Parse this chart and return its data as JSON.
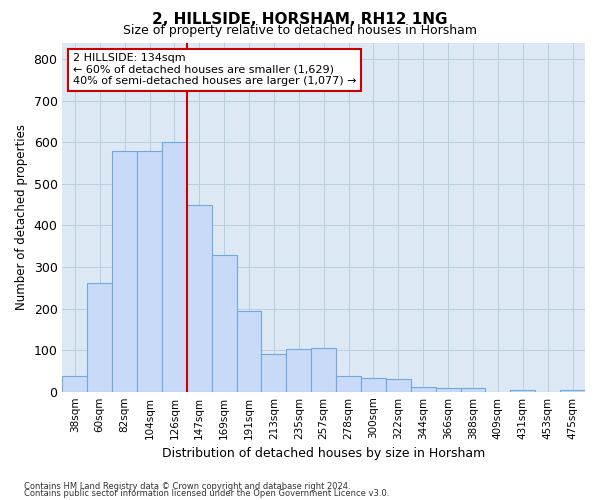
{
  "title": "2, HILLSIDE, HORSHAM, RH12 1NG",
  "subtitle": "Size of property relative to detached houses in Horsham",
  "xlabel": "Distribution of detached houses by size in Horsham",
  "ylabel": "Number of detached properties",
  "categories": [
    "38sqm",
    "60sqm",
    "82sqm",
    "104sqm",
    "126sqm",
    "147sqm",
    "169sqm",
    "191sqm",
    "213sqm",
    "235sqm",
    "257sqm",
    "278sqm",
    "300sqm",
    "322sqm",
    "344sqm",
    "366sqm",
    "388sqm",
    "409sqm",
    "431sqm",
    "453sqm",
    "475sqm"
  ],
  "values": [
    38,
    262,
    580,
    580,
    600,
    450,
    330,
    193,
    90,
    103,
    105,
    37,
    32,
    30,
    12,
    10,
    8,
    0,
    5,
    0,
    5
  ],
  "bar_color": "#c9daf8",
  "bar_edge_color": "#6fa8dc",
  "red_line_index": 4,
  "annotation_text": "2 HILLSIDE: 134sqm\n← 60% of detached houses are smaller (1,629)\n40% of semi-detached houses are larger (1,077) →",
  "annotation_box_color": "#ffffff",
  "annotation_box_edge_color": "#cc0000",
  "ylim": [
    0,
    840
  ],
  "yticks": [
    0,
    100,
    200,
    300,
    400,
    500,
    600,
    700,
    800
  ],
  "background_color": "#ffffff",
  "axes_bg_color": "#dce9f5",
  "grid_color": "#b8cfe0",
  "footer_line1": "Contains HM Land Registry data © Crown copyright and database right 2024.",
  "footer_line2": "Contains public sector information licensed under the Open Government Licence v3.0."
}
